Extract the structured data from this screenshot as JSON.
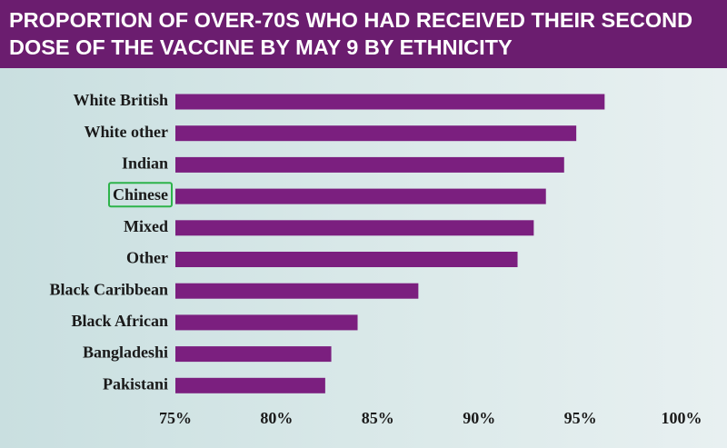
{
  "chart_data": {
    "type": "bar",
    "orientation": "horizontal",
    "title": "PROPORTION OF OVER-70S WHO HAD RECEIVED THEIR SECOND DOSE OF THE VACCINE BY MAY 9 BY ETHNICITY",
    "categories": [
      "White British",
      "White other",
      "Indian",
      "Chinese",
      "Mixed",
      "Other",
      "Black Caribbean",
      "Black African",
      "Bangladeshi",
      "Pakistani"
    ],
    "values": [
      96.2,
      94.8,
      94.2,
      93.3,
      92.7,
      91.9,
      87.0,
      84.0,
      82.7,
      82.4
    ],
    "color": "#7b1f7f",
    "xlim": [
      75,
      100
    ],
    "xticks": [
      {
        "value": 75,
        "label": "75%"
      },
      {
        "value": 80,
        "label": "80%"
      },
      {
        "value": 85,
        "label": "85%"
      },
      {
        "value": 90,
        "label": "90%"
      },
      {
        "value": 95,
        "label": "95%"
      },
      {
        "value": 100,
        "label": "100%"
      }
    ],
    "grid": false
  }
}
